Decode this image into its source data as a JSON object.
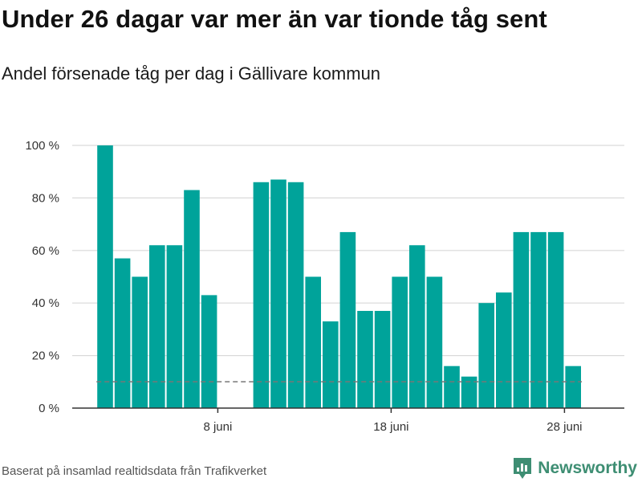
{
  "title": "Under 26 dagar var mer än var tionde tåg sent",
  "subtitle": "Andel försenade tåg per dag i Gällivare kommun",
  "footer": "Baserat på insamlad realtidsdata från Trafikverket",
  "brand": {
    "name": "Newsworthy",
    "icon": "newsworthy-logo-icon",
    "color": "#3e8e73"
  },
  "chart_data": {
    "type": "bar",
    "x_unit": "day of June",
    "x": [
      2,
      3,
      4,
      5,
      6,
      7,
      8,
      9,
      10,
      11,
      12,
      13,
      14,
      15,
      16,
      17,
      18,
      19,
      20,
      21,
      22,
      23,
      24,
      25,
      26,
      27,
      28,
      29
    ],
    "values": [
      100,
      57,
      50,
      62,
      62,
      83,
      43,
      0,
      0,
      86,
      87,
      86,
      50,
      33,
      67,
      37,
      37,
      50,
      62,
      50,
      16,
      12,
      40,
      44,
      67,
      67,
      67,
      16
    ],
    "ylim": [
      0,
      100
    ],
    "y_ticks": [
      0,
      20,
      40,
      60,
      80,
      100
    ],
    "y_tick_labels": [
      "0 %",
      "20 %",
      "40 %",
      "60 %",
      "80 %",
      "100 %"
    ],
    "x_ticks": [
      8,
      18,
      28
    ],
    "x_tick_labels": [
      "8 juni",
      "18 juni",
      "28 juni"
    ],
    "reference_line": {
      "value": 10,
      "style": "dashed"
    },
    "bar_color": "#00a39a",
    "grid": true,
    "xlabel": "",
    "ylabel": ""
  }
}
